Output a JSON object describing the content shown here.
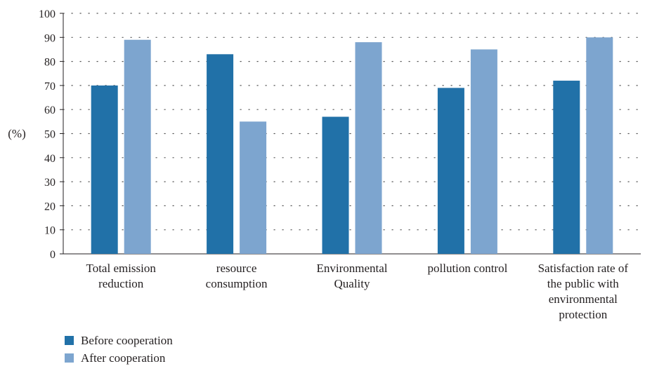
{
  "chart_data": {
    "type": "bar",
    "categories": [
      "Total emission reduction",
      "resource consumption",
      "Environmental Quality",
      "pollution control",
      "Satisfaction rate of the public with environmental protection"
    ],
    "category_label_lines": [
      [
        "Total emission",
        "reduction"
      ],
      [
        "resource",
        "consumption"
      ],
      [
        "Environmental",
        "Quality"
      ],
      [
        "pollution control"
      ],
      [
        "Satisfaction rate of",
        "the public with",
        "environmental",
        "protection"
      ]
    ],
    "series": [
      {
        "name": "Before cooperation",
        "values": [
          70,
          83,
          57,
          69,
          72
        ],
        "color": "#2171a8"
      },
      {
        "name": "After cooperation",
        "values": [
          89,
          55,
          88,
          85,
          90
        ],
        "color": "#7da5cf"
      }
    ],
    "ylabel": "(%)",
    "ylim": [
      0,
      100
    ],
    "yticks": [
      0,
      10,
      20,
      30,
      40,
      50,
      60,
      70,
      80,
      90,
      100
    ],
    "grid": true,
    "legend_position": "bottom-left"
  }
}
